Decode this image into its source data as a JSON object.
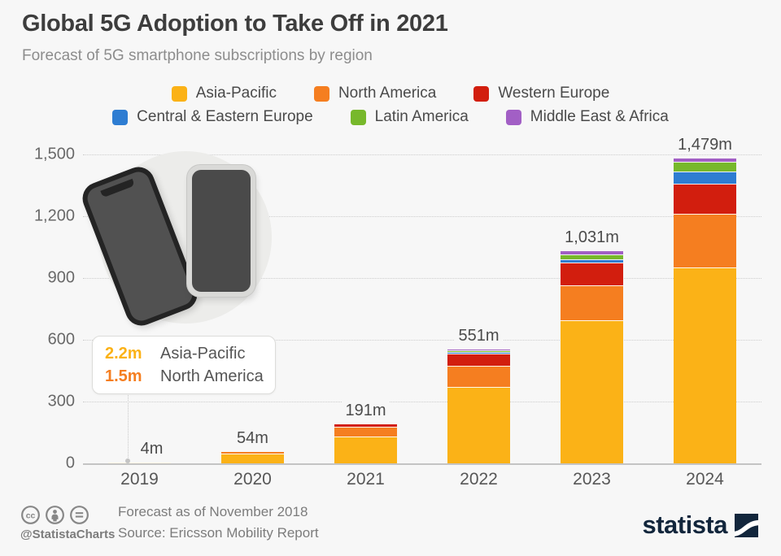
{
  "header": {
    "title": "Global 5G Adoption to Take Off in 2021",
    "subtitle": "Forecast of 5G smartphone subscriptions by region"
  },
  "legend": {
    "rows": [
      [
        {
          "label": "Asia-Pacific",
          "color": "#FBB217"
        },
        {
          "label": "North America",
          "color": "#F57E20"
        },
        {
          "label": "Western Europe",
          "color": "#D21E0E"
        }
      ],
      [
        {
          "label": "Central & Eastern Europe",
          "color": "#2E7DD2"
        },
        {
          "label": "Latin America",
          "color": "#77B82B"
        },
        {
          "label": "Middle East & Africa",
          "color": "#A25FC5"
        }
      ]
    ]
  },
  "chart_data": {
    "type": "bar",
    "stacked": true,
    "unit": "million 5G smartphone subscriptions",
    "categories": [
      "2019",
      "2020",
      "2021",
      "2022",
      "2023",
      "2024"
    ],
    "series": [
      {
        "name": "Asia-Pacific",
        "color": "#FBB217",
        "values": [
          2.2,
          47,
          130,
          370,
          693,
          953
        ]
      },
      {
        "name": "North America",
        "color": "#F57E20",
        "values": [
          1.5,
          7,
          49,
          102,
          173,
          257
        ]
      },
      {
        "name": "Western Europe",
        "color": "#D21E0E",
        "values": [
          0,
          0,
          12,
          62,
          108,
          148
        ]
      },
      {
        "name": "Central & Eastern Europe",
        "color": "#2E7DD2",
        "values": [
          0,
          0,
          0,
          5,
          18,
          59
        ]
      },
      {
        "name": "Latin America",
        "color": "#77B82B",
        "values": [
          0,
          0,
          0,
          8,
          22,
          46
        ]
      },
      {
        "name": "Middle East & Africa",
        "color": "#A25FC5",
        "values": [
          0,
          0,
          0,
          4,
          17,
          16
        ]
      }
    ],
    "totals": [
      "4m",
      "54m",
      "191m",
      "551m",
      "1,031m",
      "1,479m"
    ],
    "yticks": [
      "0",
      "300",
      "600",
      "900",
      "1,200",
      "1,500"
    ],
    "ylim": [
      0,
      1500
    ],
    "grid": "dotted horizontal gridlines, solid baseline",
    "legend_position": "top center, two rows"
  },
  "tooltip": {
    "rows": [
      {
        "value": "2.2m",
        "label": "Asia-Pacific",
        "color": "#FBB217"
      },
      {
        "value": "1.5m",
        "label": "North America",
        "color": "#F57E20"
      }
    ]
  },
  "footer": {
    "handle": "@StatistaCharts",
    "note_line1": "Forecast as of November 2018",
    "note_line2": "Source: Ericsson Mobility Report",
    "brand": "statista"
  }
}
